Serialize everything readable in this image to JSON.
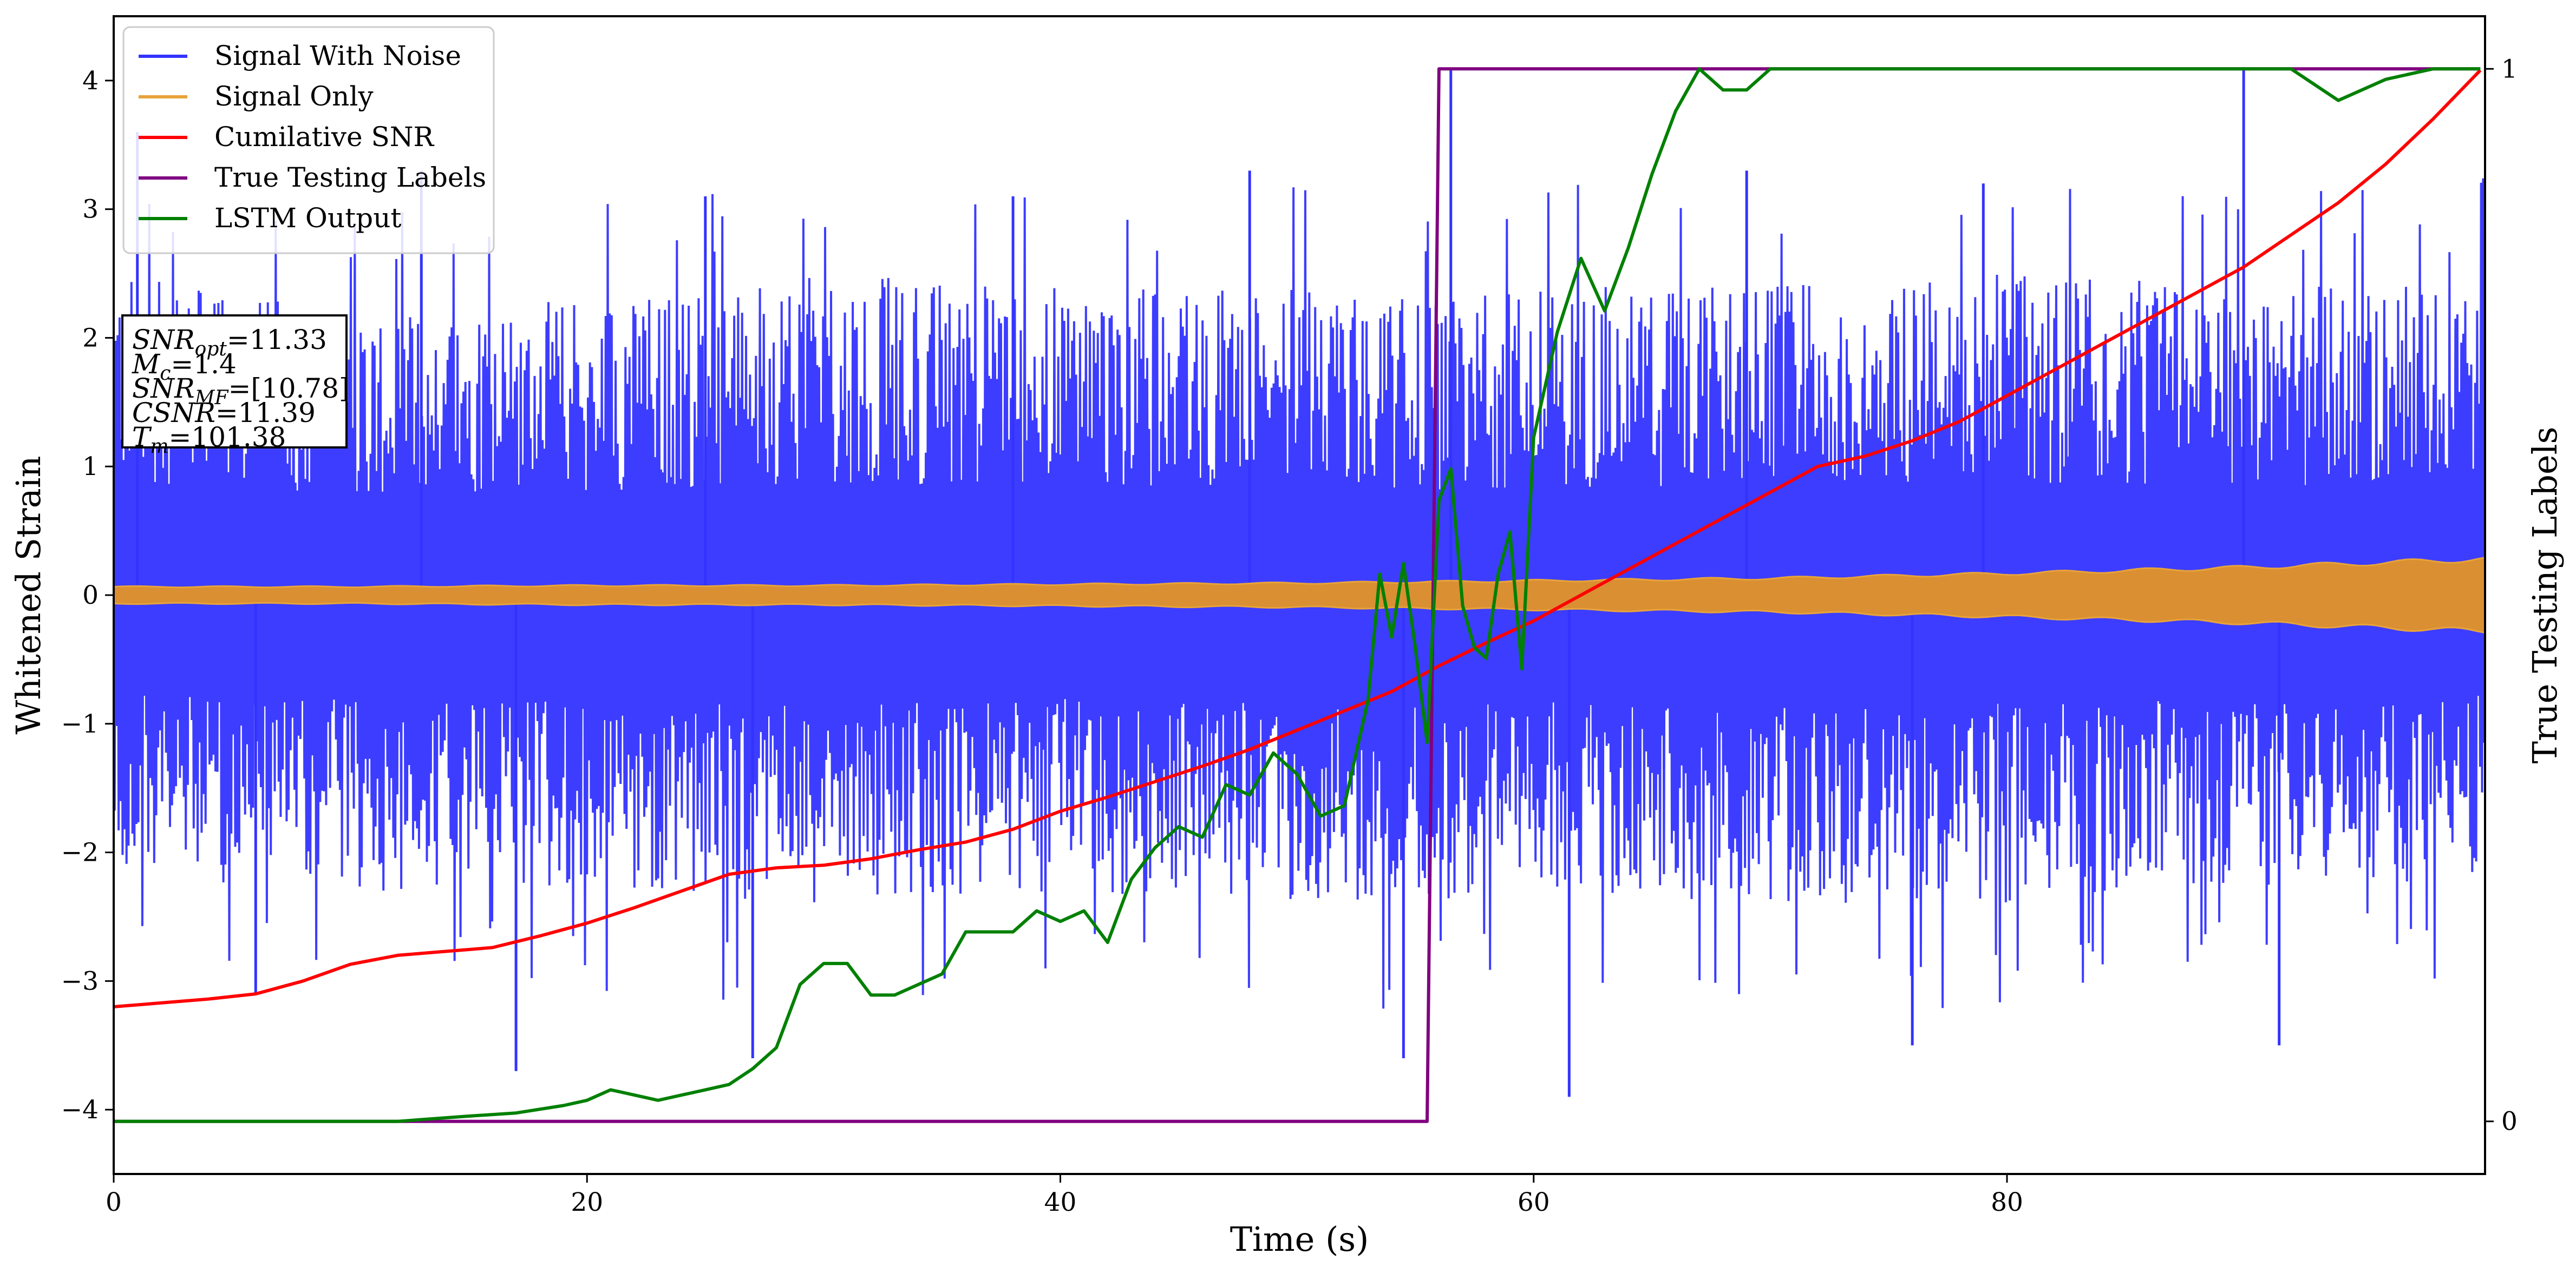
{
  "chart_data": {
    "type": "line",
    "xlabel": "Time (s)",
    "ylabel": "Whitened Strain",
    "y2label": "True Testing Labels",
    "xlim": [
      0,
      100.2
    ],
    "ylim": [
      -4.5,
      4.5
    ],
    "y2lim": [
      -0.05,
      1.05
    ],
    "x_ticks": [
      0,
      20,
      40,
      60,
      80
    ],
    "y_ticks": [
      -4,
      -3,
      -2,
      -1,
      0,
      1,
      2,
      3,
      4
    ],
    "y2_ticks": [
      0,
      1
    ],
    "legend_position": "top-left",
    "grid": false,
    "series": [
      {
        "name": "Signal With Noise",
        "color": "#3333ff",
        "axis": "left",
        "style": "dense-noise",
        "envelope_x": [
          0,
          10,
          20,
          30,
          40,
          50,
          55,
          60,
          70,
          80,
          90,
          100
        ],
        "envelope_upper": [
          2.5,
          2.2,
          2.3,
          2.5,
          2.4,
          2.4,
          2.3,
          2.4,
          2.4,
          2.5,
          2.4,
          2.4
        ],
        "envelope_lower": [
          -2.2,
          -2.3,
          -2.3,
          -2.4,
          -2.3,
          -2.4,
          -2.4,
          -2.3,
          -2.4,
          -2.4,
          -2.3,
          -2.2
        ],
        "spikes_x": [
          1,
          6,
          13,
          17,
          25,
          27,
          38,
          48,
          54.5,
          56.5,
          61.5,
          69,
          76,
          79,
          90,
          91.5
        ],
        "spikes_y": [
          3.6,
          -3.1,
          3.3,
          -3.7,
          3.1,
          -3.6,
          3.1,
          3.3,
          -3.6,
          4.1,
          -3.9,
          3.3,
          -3.5,
          3.2,
          4.1,
          -3.5
        ]
      },
      {
        "name": "Signal Only",
        "color": "#e8a33a",
        "axis": "left",
        "style": "oscillation-band",
        "x": [
          0,
          10,
          20,
          30,
          40,
          50,
          55,
          60,
          70,
          80,
          90,
          100
        ],
        "amplitude": [
          0.07,
          0.07,
          0.08,
          0.08,
          0.09,
          0.1,
          0.11,
          0.12,
          0.14,
          0.18,
          0.23,
          0.3
        ]
      },
      {
        "name": "Cumilative SNR",
        "color": "#ff0000",
        "axis": "left",
        "x": [
          0,
          2,
          4,
          6,
          8,
          10,
          12,
          14,
          16,
          18,
          20,
          22,
          24,
          26,
          28,
          30,
          32,
          34,
          36,
          38,
          40,
          42,
          44,
          46,
          48,
          50,
          52,
          54,
          56,
          58,
          60,
          62,
          64,
          66,
          68,
          70,
          72,
          74,
          76,
          78,
          80,
          82,
          84,
          86,
          88,
          90,
          92,
          94,
          96,
          98,
          100
        ],
        "y": [
          -3.2,
          -3.17,
          -3.14,
          -3.1,
          -3.0,
          -2.87,
          -2.8,
          -2.77,
          -2.74,
          -2.65,
          -2.55,
          -2.43,
          -2.3,
          -2.17,
          -2.12,
          -2.1,
          -2.05,
          -1.98,
          -1.92,
          -1.82,
          -1.68,
          -1.57,
          -1.45,
          -1.33,
          -1.2,
          -1.05,
          -0.9,
          -0.75,
          -0.55,
          -0.37,
          -0.2,
          0.0,
          0.2,
          0.4,
          0.6,
          0.8,
          1.0,
          1.08,
          1.2,
          1.35,
          1.55,
          1.75,
          1.95,
          2.15,
          2.35,
          2.55,
          2.8,
          3.05,
          3.35,
          3.7,
          4.08
        ]
      },
      {
        "name": "True Testing Labels",
        "color": "#800080",
        "axis": "right",
        "x": [
          0,
          55.5,
          56,
          100
        ],
        "y": [
          0,
          0,
          1,
          1
        ]
      },
      {
        "name": "LSTM Output",
        "color": "#008000",
        "axis": "right",
        "x": [
          0,
          12,
          15,
          17,
          19,
          20,
          21,
          22,
          23,
          24,
          25,
          26,
          27,
          28,
          29,
          30,
          31,
          32,
          33,
          34,
          35,
          36,
          37,
          38,
          39,
          40,
          41,
          42,
          43,
          44,
          45,
          46,
          47,
          48,
          49,
          50,
          51,
          52,
          53,
          53.5,
          54,
          54.5,
          55,
          55.5,
          56,
          56.5,
          57,
          57.5,
          58,
          58.5,
          59,
          59.5,
          60,
          61,
          62,
          63,
          64,
          65,
          66,
          67,
          68,
          69,
          70,
          72,
          74,
          76,
          78,
          80,
          82,
          84,
          86,
          88,
          90,
          92,
          94,
          96,
          98,
          100
        ],
        "y": [
          0.0,
          0.0,
          0.005,
          0.008,
          0.015,
          0.02,
          0.03,
          0.025,
          0.02,
          0.025,
          0.03,
          0.035,
          0.05,
          0.07,
          0.13,
          0.15,
          0.15,
          0.12,
          0.12,
          0.13,
          0.14,
          0.18,
          0.18,
          0.18,
          0.2,
          0.19,
          0.2,
          0.17,
          0.23,
          0.26,
          0.28,
          0.27,
          0.32,
          0.31,
          0.35,
          0.33,
          0.29,
          0.3,
          0.4,
          0.52,
          0.46,
          0.53,
          0.45,
          0.36,
          0.59,
          0.62,
          0.49,
          0.45,
          0.44,
          0.52,
          0.56,
          0.43,
          0.65,
          0.75,
          0.82,
          0.77,
          0.83,
          0.9,
          0.96,
          1.0,
          0.98,
          0.98,
          1.0,
          1.0,
          1.0,
          1.0,
          1.0,
          1.0,
          1.0,
          1.0,
          1.0,
          1.0,
          1.0,
          1.0,
          0.97,
          0.99,
          1.0,
          1.0
        ]
      }
    ],
    "annotation": {
      "lines": [
        {
          "symbol": "SNR",
          "subscript": "opt",
          "value": "=11.33"
        },
        {
          "symbol": "M",
          "subscript": "c",
          "value": "=1.4"
        },
        {
          "symbol": "SNR",
          "subscript": "MF",
          "value": "=[10.78]"
        },
        {
          "symbol": "CSNR",
          "subscript": "",
          "value": "=11.39"
        },
        {
          "symbol": "T",
          "subscript": "m",
          "value": "=101.38"
        }
      ]
    }
  }
}
